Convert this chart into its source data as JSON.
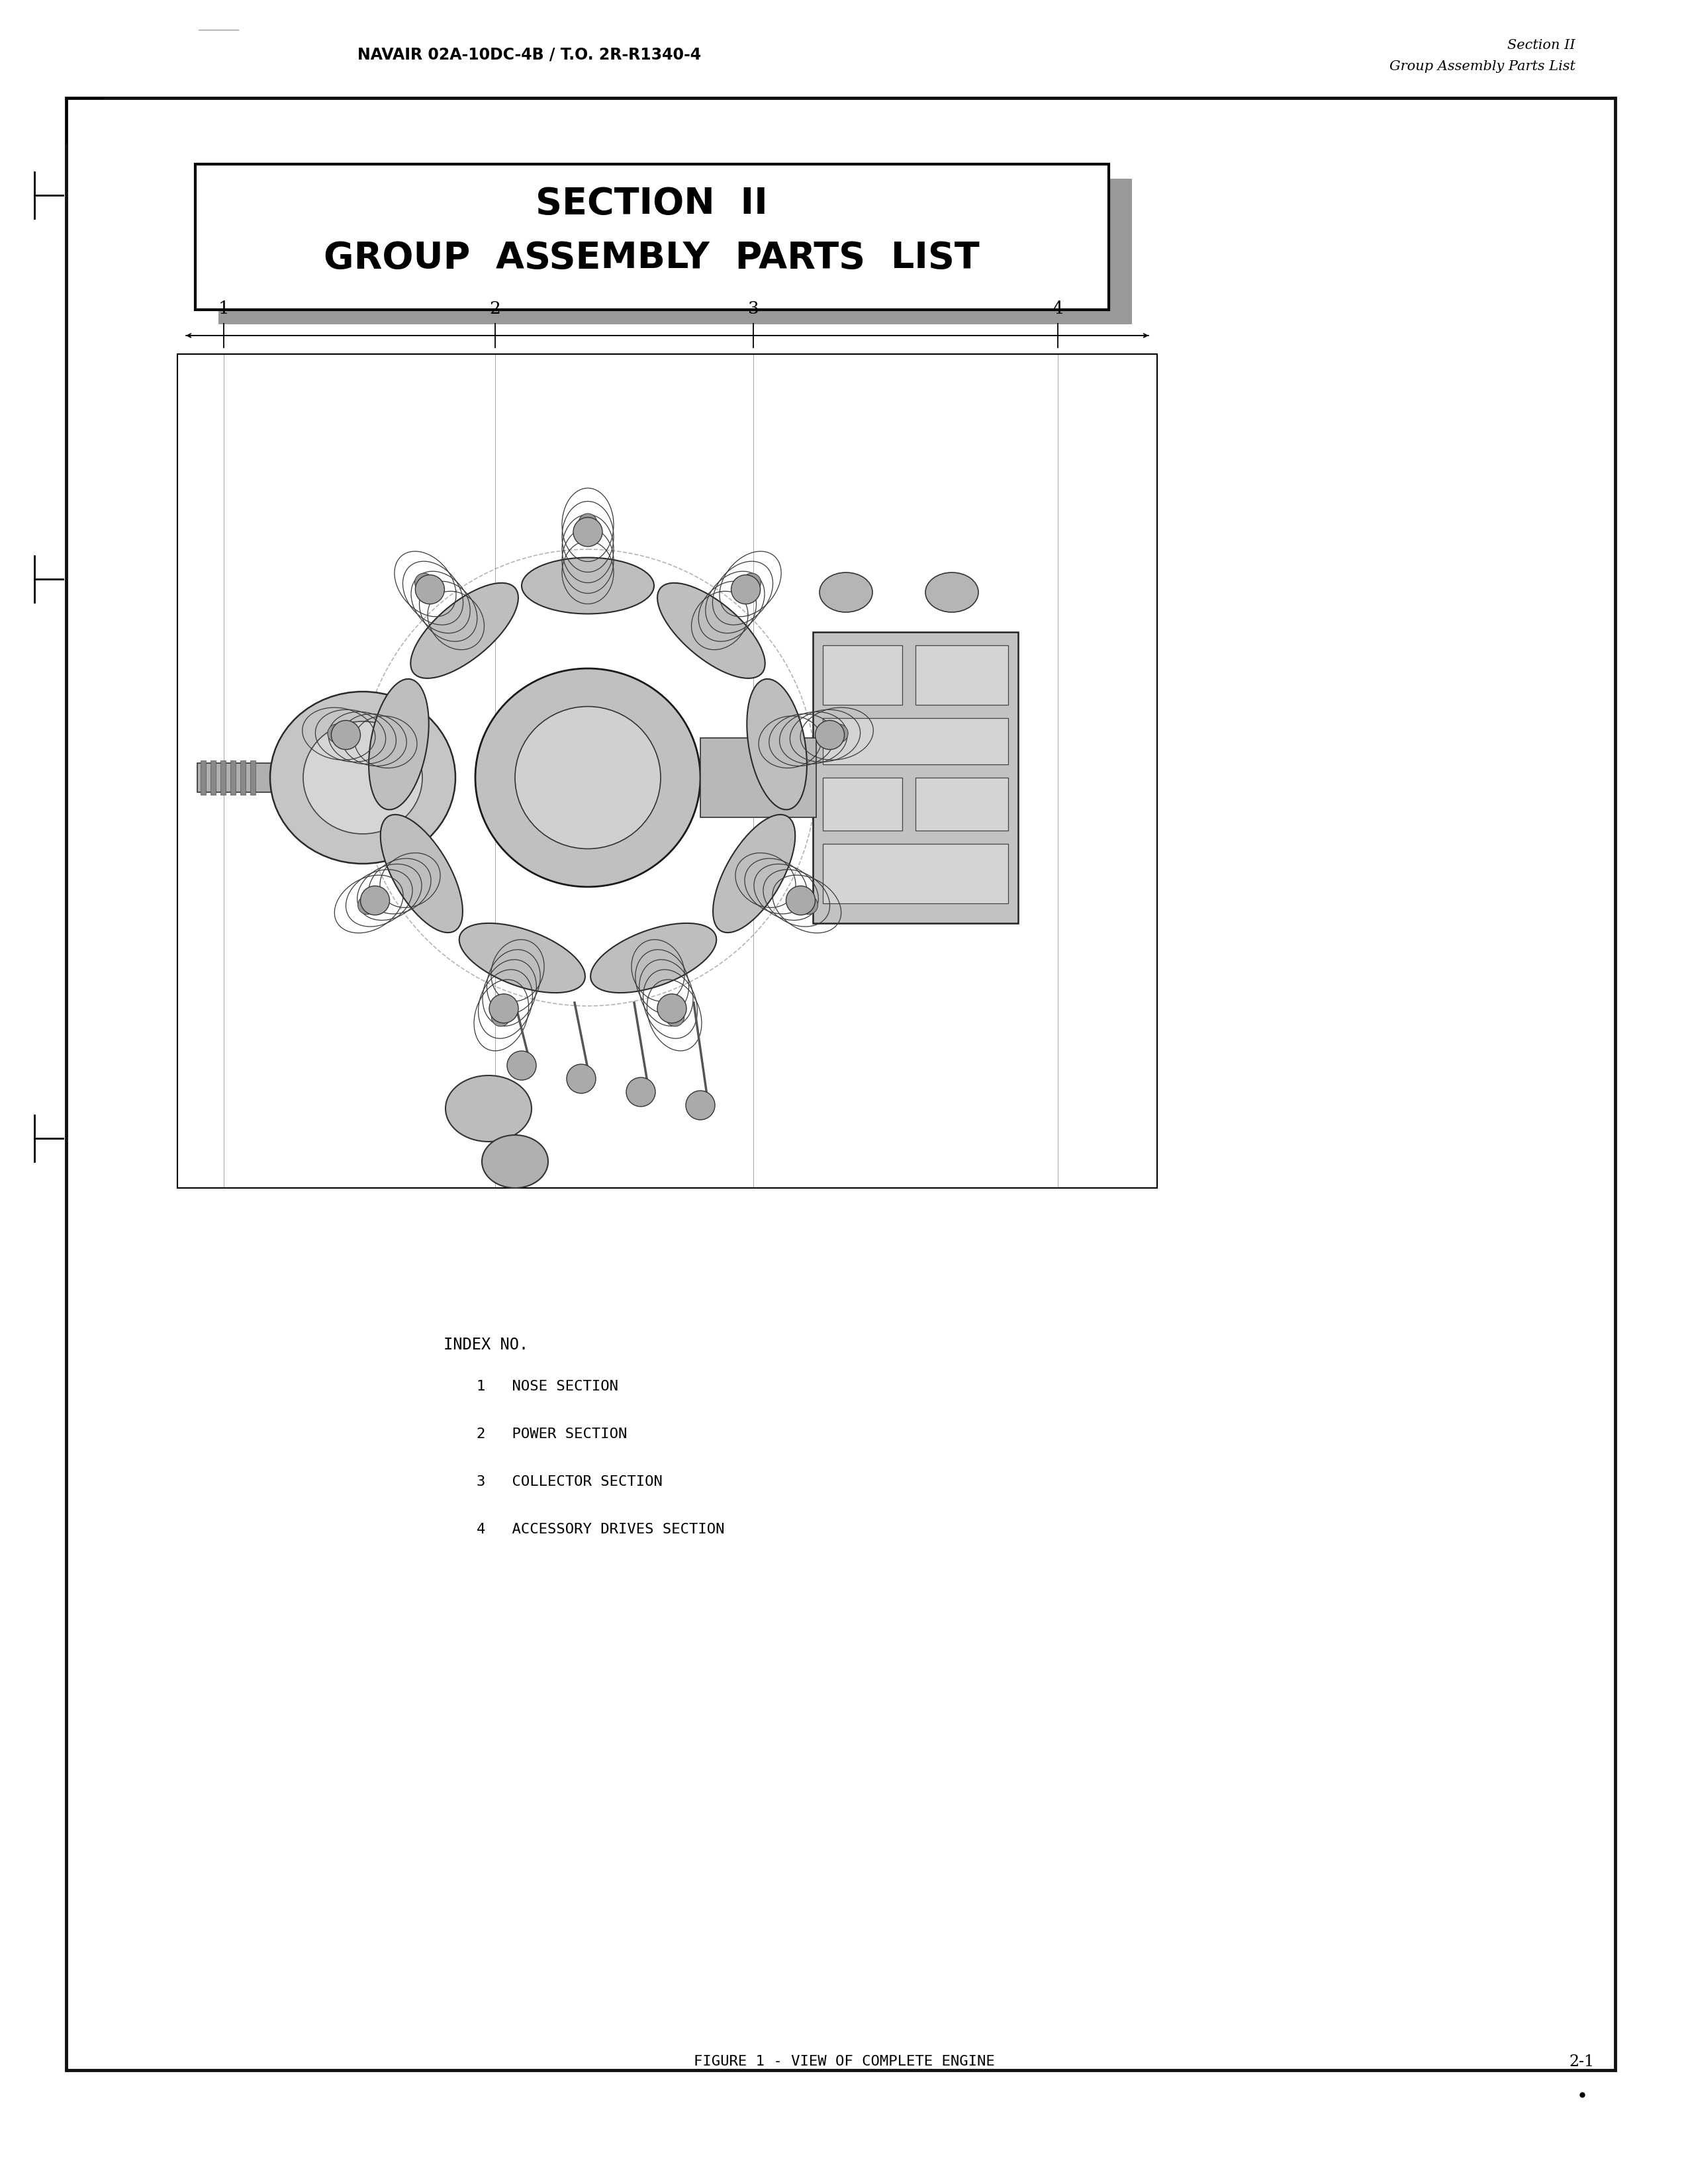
{
  "background_color": "#ffffff",
  "header_left": "NAVAIR 02A-10DC-4B / T.O. 2R-R1340-4",
  "header_right_line1": "Section II",
  "header_right_line2": "Group Assembly Parts List",
  "section_title_line1": "SECTION  II",
  "section_title_line2": "GROUP  ASSEMBLY  PARTS  LIST",
  "index_title": "INDEX NO.",
  "index_items": [
    "1   NOSE SECTION",
    "2   POWER SECTION",
    "3   COLLECTOR SECTION",
    "4   ACCESSORY DRIVES SECTION"
  ],
  "figure_caption": "FIGURE 1 - VIEW OF COMPLETE ENGINE",
  "page_number": "2-1",
  "arrow_labels": [
    "1",
    "2",
    "3",
    "4"
  ],
  "outer_border_color": "#111111",
  "shadow_color": "#999999"
}
